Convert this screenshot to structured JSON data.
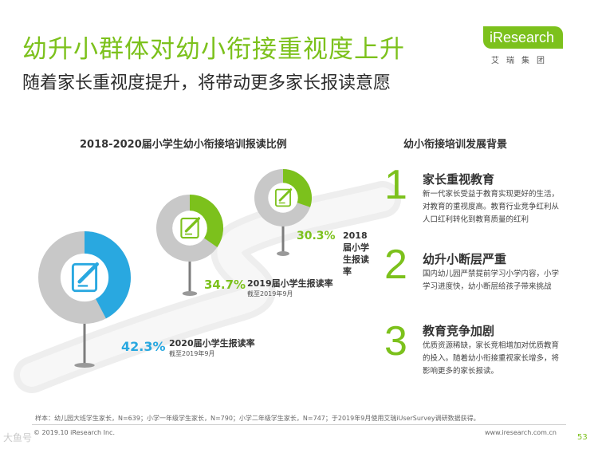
{
  "header": {
    "title": "幼升小群体对幼小衔接重视度上升",
    "subtitle": "随着家长重视度提升，将带动更多家长报读意愿"
  },
  "logo": {
    "name": "iResearch",
    "cn": "艾瑞集团"
  },
  "colors": {
    "accent": "#7cc11c",
    "blue": "#29a8e0",
    "gray": "#c8c8c8",
    "pole": "#7d7d7d"
  },
  "chart_data": {
    "type": "pie",
    "title": "2018-2020届小学生幼小衔接培训报读比例",
    "items": [
      {
        "label": "2018届小学生报读率",
        "value": 30.3,
        "value_text": "30.3%",
        "note": "",
        "color": "#7cc11c"
      },
      {
        "label": "2019届小学生报读率",
        "value": 34.7,
        "value_text": "34.7%",
        "note": "截至2019年9月",
        "color": "#7cc11c"
      },
      {
        "label": "2020届小学生报读率",
        "value": 42.3,
        "value_text": "42.3%",
        "note": "截至2019年9月",
        "color": "#29a8e0"
      }
    ],
    "icon": "document-pen-icon"
  },
  "background": {
    "title": "幼小衔接培训发展背景",
    "items": [
      {
        "num": "1",
        "heading": "家长重视教育",
        "body": "新一代家长受益于教育实现更好的生活，对教育的重视度高。教育行业竞争红利从人口红利转化到教育质量的红利"
      },
      {
        "num": "2",
        "heading": "幼升小断层严重",
        "body": "国内幼儿园严禁提前学习小学内容，小学学习进度快，幼小断层给孩子带来挑战"
      },
      {
        "num": "3",
        "heading": "教育竞争加剧",
        "body": "优质资源稀缺，家长竞相增加对优质教育的投入。随着幼小衔接重视家长增多，将影响更多的家长报读。"
      }
    ]
  },
  "footer": {
    "note": "样本：幼儿园大班学生家长，N=639；小学一年级学生家长，N=790；小学二年级学生家长，N=747；于2019年9月使用艾瑞iUserSurvey调研数据获得。",
    "copyright": "© 2019.10 iResearch Inc.",
    "url": "www.iresearch.com.cn",
    "page": "53",
    "watermark": "大鱼号"
  }
}
